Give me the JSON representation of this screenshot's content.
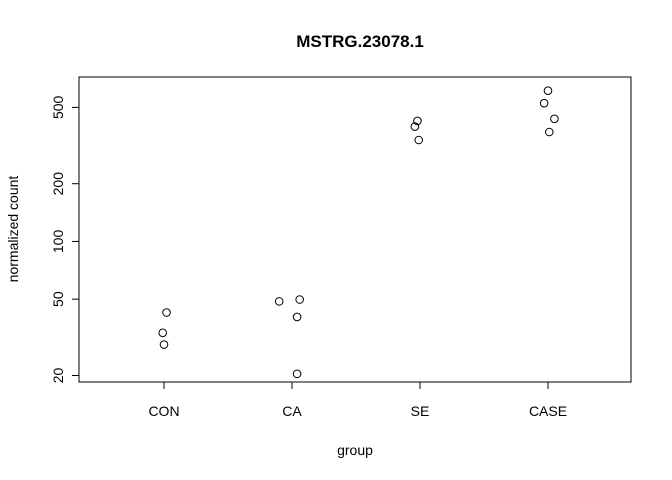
{
  "chart_data": {
    "type": "scatter",
    "title": "MSTRG.23078.1",
    "xlabel": "group",
    "ylabel": "normalized count",
    "categories": [
      "CON",
      "CA",
      "SE",
      "CASE"
    ],
    "y_scale": "log",
    "ylim": [
      18.5,
      720
    ],
    "y_ticks": [
      20,
      50,
      100,
      200,
      500
    ],
    "y_tick_labels": [
      "20",
      "50",
      "100",
      "200",
      "500"
    ],
    "grid": false,
    "legend": "none",
    "point_color": "#000000",
    "points": [
      {
        "group": "CON",
        "jitter": 0.02,
        "y": 42.6
      },
      {
        "group": "CON",
        "jitter": -0.01,
        "y": 33.4
      },
      {
        "group": "CON",
        "jitter": 0.0,
        "y": 29.0
      },
      {
        "group": "CA",
        "jitter": -0.1,
        "y": 48.7
      },
      {
        "group": "CA",
        "jitter": 0.06,
        "y": 49.8
      },
      {
        "group": "CA",
        "jitter": 0.04,
        "y": 40.4
      },
      {
        "group": "CA",
        "jitter": 0.04,
        "y": 20.4
      },
      {
        "group": "SE",
        "jitter": -0.02,
        "y": 425
      },
      {
        "group": "SE",
        "jitter": -0.04,
        "y": 397
      },
      {
        "group": "SE",
        "jitter": -0.01,
        "y": 338
      },
      {
        "group": "CASE",
        "jitter": 0.0,
        "y": 611
      },
      {
        "group": "CASE",
        "jitter": -0.03,
        "y": 526
      },
      {
        "group": "CASE",
        "jitter": 0.05,
        "y": 436
      },
      {
        "group": "CASE",
        "jitter": 0.01,
        "y": 372
      }
    ]
  }
}
